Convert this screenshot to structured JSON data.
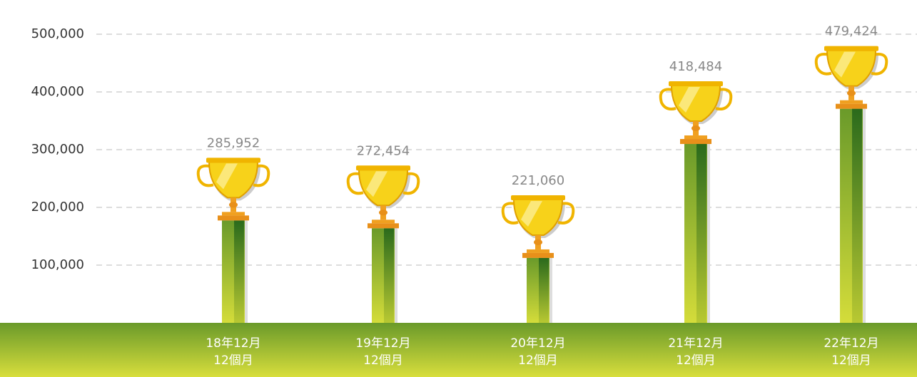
{
  "chart_data": {
    "type": "trophy-bar",
    "categories": [
      [
        "18年12月",
        "12個月"
      ],
      [
        "19年12月",
        "12個月"
      ],
      [
        "20年12月",
        "12個月"
      ],
      [
        "21年12月",
        "12個月"
      ],
      [
        "22年12月",
        "12個月"
      ]
    ],
    "values": [
      285952,
      272454,
      221060,
      418484,
      479424
    ],
    "value_labels": [
      "285,952",
      "272,454",
      "221,060",
      "418,484",
      "479,424"
    ],
    "color": "#6a9a2a",
    "ylim": [
      0,
      500000
    ],
    "yticks": [
      {
        "value": 100000,
        "label": "100,000"
      },
      {
        "value": 200000,
        "label": "200,000"
      },
      {
        "value": 300000,
        "label": "300,000"
      },
      {
        "value": 400000,
        "label": "400,000"
      },
      {
        "value": 500000,
        "label": "500,000"
      }
    ],
    "grid": true
  }
}
